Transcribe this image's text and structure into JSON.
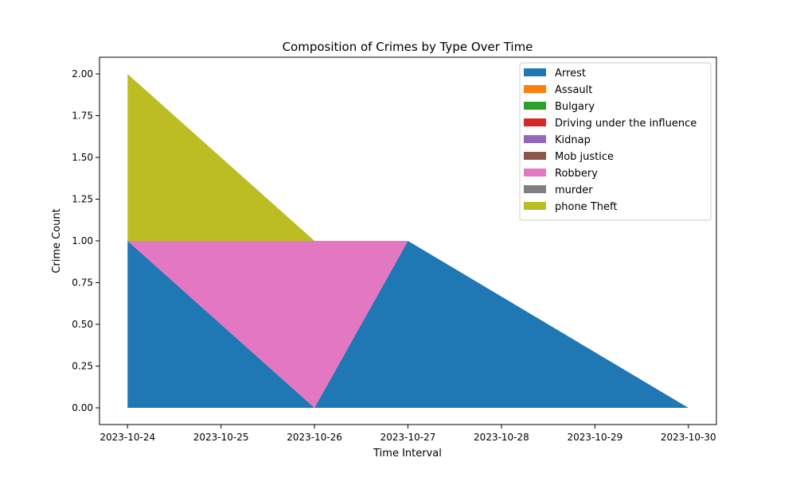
{
  "chart_data": {
    "type": "area",
    "stacked": true,
    "title": "Composition of Crimes by Type Over Time",
    "xlabel": "Time Interval",
    "ylabel": "Crime Count",
    "x": [
      "2023-10-24",
      "2023-10-25",
      "2023-10-26",
      "2023-10-27",
      "2023-10-28",
      "2023-10-29",
      "2023-10-30"
    ],
    "ylim": [
      -0.1,
      2.1
    ],
    "y_ticks": [
      "0.00",
      "0.25",
      "0.50",
      "0.75",
      "1.00",
      "1.25",
      "1.50",
      "1.75",
      "2.00"
    ],
    "grid": false,
    "legend_position": "top-right",
    "series": [
      {
        "name": "Arrest",
        "color": "#1f77b4",
        "points": [
          [
            "2023-10-24",
            1
          ],
          [
            "2023-10-26",
            0
          ],
          [
            "2023-10-27",
            1
          ],
          [
            "2023-10-30",
            0
          ]
        ]
      },
      {
        "name": "Assault",
        "color": "#ff7f0e",
        "points": [
          [
            "2023-10-24",
            0
          ],
          [
            "2023-10-26",
            0
          ],
          [
            "2023-10-27",
            0
          ],
          [
            "2023-10-30",
            0
          ]
        ]
      },
      {
        "name": "Bulgary",
        "color": "#2ca02c",
        "points": [
          [
            "2023-10-24",
            0
          ],
          [
            "2023-10-26",
            0
          ],
          [
            "2023-10-27",
            0
          ],
          [
            "2023-10-30",
            0
          ]
        ]
      },
      {
        "name": "Driving under the influence",
        "color": "#d62728",
        "points": [
          [
            "2023-10-24",
            0
          ],
          [
            "2023-10-26",
            0
          ],
          [
            "2023-10-27",
            0
          ],
          [
            "2023-10-30",
            0
          ]
        ]
      },
      {
        "name": "Kidnap",
        "color": "#9467bd",
        "points": [
          [
            "2023-10-24",
            0
          ],
          [
            "2023-10-26",
            0
          ],
          [
            "2023-10-27",
            0
          ],
          [
            "2023-10-30",
            0
          ]
        ]
      },
      {
        "name": "Mob justice",
        "color": "#8c564b",
        "points": [
          [
            "2023-10-24",
            0
          ],
          [
            "2023-10-26",
            0
          ],
          [
            "2023-10-27",
            0
          ],
          [
            "2023-10-30",
            0
          ]
        ]
      },
      {
        "name": "Robbery",
        "color": "#e377c2",
        "points": [
          [
            "2023-10-24",
            0
          ],
          [
            "2023-10-26",
            1
          ],
          [
            "2023-10-27",
            0
          ],
          [
            "2023-10-30",
            0
          ]
        ]
      },
      {
        "name": "murder",
        "color": "#7f7f7f",
        "points": [
          [
            "2023-10-24",
            0
          ],
          [
            "2023-10-26",
            0
          ],
          [
            "2023-10-27",
            0
          ],
          [
            "2023-10-30",
            0
          ]
        ]
      },
      {
        "name": "phone Theft",
        "color": "#bcbd22",
        "points": [
          [
            "2023-10-24",
            1
          ],
          [
            "2023-10-26",
            0
          ],
          [
            "2023-10-27",
            0
          ],
          [
            "2023-10-30",
            0
          ]
        ]
      }
    ]
  }
}
